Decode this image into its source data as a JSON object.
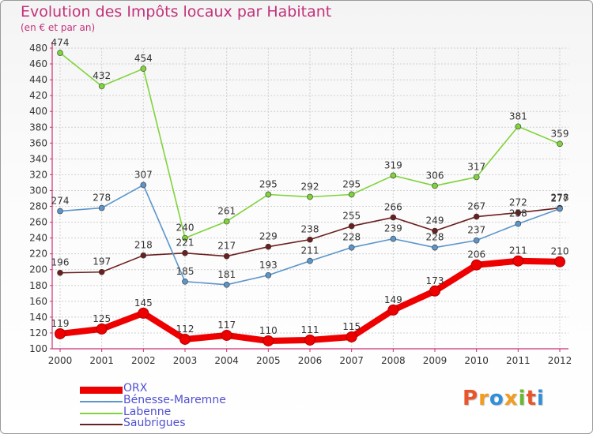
{
  "title": "Evolution des Impôts locaux par Habitant",
  "subtitle": "(en € et par an)",
  "logo": {
    "letters": [
      "P",
      "r",
      "o",
      "x",
      "i",
      "t",
      "i"
    ],
    "colors": [
      "#e8552a",
      "#f39c1d",
      "#2f8fd8",
      "#f39c1d",
      "#68b92e",
      "#e8552a",
      "#2f8fd8"
    ]
  },
  "chart_data": {
    "type": "line",
    "title": "Evolution des Impôts locaux par Habitant",
    "ylabel": "(en € et par an)",
    "xlabel": "",
    "ylim": [
      100,
      480
    ],
    "yticks": [
      100,
      120,
      140,
      160,
      180,
      200,
      220,
      240,
      260,
      280,
      300,
      320,
      340,
      360,
      380,
      400,
      420,
      440,
      460,
      480
    ],
    "categories": [
      "2000",
      "2001",
      "2002",
      "2003",
      "2004",
      "2005",
      "2006",
      "2007",
      "2008",
      "2009",
      "2010",
      "2011",
      "2012"
    ],
    "grid": true,
    "legend_position": "bottom-left",
    "series": [
      {
        "name": "Saubrigues",
        "color": "#6b1f1f",
        "values": [
          196,
          197,
          218,
          221,
          217,
          229,
          238,
          255,
          266,
          249,
          267,
          272,
          278
        ]
      },
      {
        "name": "Bénesse-Maremne",
        "color": "#5b95c9",
        "values": [
          274,
          278,
          307,
          185,
          181,
          193,
          211,
          228,
          239,
          228,
          237,
          258,
          277
        ]
      },
      {
        "name": "Labenne",
        "color": "#7fd33b",
        "values": [
          474,
          432,
          454,
          240,
          261,
          295,
          292,
          295,
          319,
          306,
          317,
          381,
          359
        ]
      },
      {
        "name": "ORX",
        "color": "#ee0000",
        "values": [
          119,
          125,
          145,
          112,
          117,
          110,
          111,
          115,
          149,
          173,
          206,
          211,
          210
        ]
      }
    ],
    "legend_order": [
      "ORX",
      "Bénesse-Maremne",
      "Labenne",
      "Saubrigues"
    ]
  }
}
